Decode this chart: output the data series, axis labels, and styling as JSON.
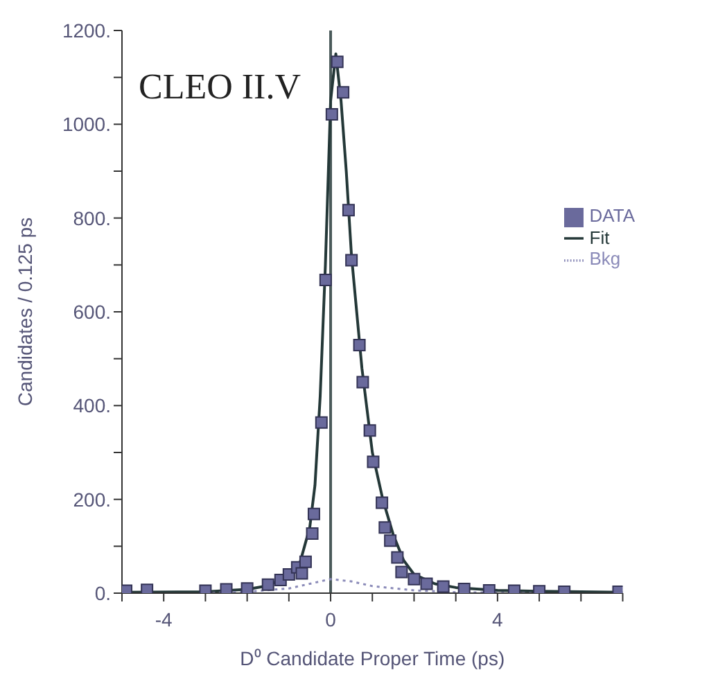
{
  "chart_data": {
    "type": "scatter",
    "xlabel": "D⁰ Candidate Proper Time (ps)",
    "ylabel": "Candidates / 0.125 ps",
    "annotations": [
      "CLEO II.V"
    ],
    "series": [
      {
        "name": "DATA",
        "type": "scatter",
        "marker": "square",
        "color": "#6a6a9c",
        "x": [
          -4.9,
          -4.4,
          -3.0,
          -2.5,
          -2.0,
          -1.5,
          -1.2,
          -1.0,
          -0.8,
          -0.69,
          -0.6,
          -0.44,
          -0.4,
          -0.22,
          -0.12,
          0.03,
          0.16,
          0.3,
          0.43,
          0.5,
          0.69,
          0.77,
          0.94,
          1.02,
          1.23,
          1.3,
          1.43,
          1.6,
          1.7,
          2.0,
          2.3,
          2.7,
          3.2,
          3.8,
          4.4,
          5.0,
          5.6,
          6.9
        ],
        "values": [
          5,
          7,
          5,
          8,
          10,
          18,
          28,
          40,
          55,
          42,
          67,
          127,
          169,
          364,
          668,
          1021,
          1133,
          1068,
          817,
          710,
          529,
          450,
          347,
          280,
          193,
          140,
          112,
          76,
          45,
          30,
          20,
          14,
          9,
          6,
          5,
          4,
          3,
          3
        ]
      },
      {
        "name": "Fit",
        "type": "line",
        "line_style": "solid",
        "color": "#243838",
        "x": [
          -5,
          -3,
          -2,
          -1.5,
          -1,
          -0.75,
          -0.5,
          -0.375,
          -0.25,
          -0.125,
          0,
          0.125,
          0.25,
          0.375,
          0.5,
          0.625,
          0.75,
          0.875,
          1,
          1.25,
          1.5,
          1.75,
          2,
          2.5,
          3,
          4,
          5,
          7
        ],
        "values": [
          2,
          3,
          8,
          16,
          38,
          60,
          140,
          230,
          420,
          700,
          1050,
          1150,
          1050,
          900,
          720,
          600,
          480,
          390,
          300,
          200,
          125,
          70,
          40,
          20,
          12,
          6,
          4,
          2
        ]
      },
      {
        "name": "Bkg",
        "type": "line",
        "line_style": "dotted",
        "color": "#8a8ab8",
        "x": [
          -3,
          -2,
          -1,
          -0.5,
          0,
          0.5,
          1,
          2,
          3,
          5
        ],
        "values": [
          0,
          3,
          10,
          20,
          30,
          25,
          15,
          6,
          2,
          0
        ]
      }
    ],
    "ref_lines": [
      {
        "axis": "x",
        "value": 0,
        "color": "#4a5a5a"
      }
    ],
    "xlim": [
      -5,
      7
    ],
    "xticks": [
      {
        "value": -5,
        "label": null
      },
      -4,
      {
        "value": -3,
        "label": null
      },
      {
        "value": -2,
        "label": null
      },
      {
        "value": -1,
        "label": null
      },
      0,
      {
        "value": 1,
        "label": null
      },
      {
        "value": 2,
        "label": null
      },
      {
        "value": 3,
        "label": null
      },
      4,
      {
        "value": 5,
        "label": null
      },
      {
        "value": 6,
        "label": null
      },
      {
        "value": 7,
        "label": null
      }
    ],
    "ylim": [
      0,
      1200
    ],
    "yticks": [
      {
        "value": 0,
        "label": "0."
      },
      {
        "value": 100,
        "label": null
      },
      {
        "value": 200,
        "label": "200."
      },
      {
        "value": 300,
        "label": null
      },
      {
        "value": 400,
        "label": "400."
      },
      {
        "value": 500,
        "label": null
      },
      {
        "value": 600,
        "label": "600."
      },
      {
        "value": 700,
        "label": null
      },
      {
        "value": 800,
        "label": "800."
      },
      {
        "value": 900,
        "label": null
      },
      {
        "value": 1000,
        "label": "1000."
      },
      {
        "value": 1100,
        "label": null
      },
      {
        "value": 1200,
        "label": "1200."
      }
    ],
    "grid": false,
    "legend": "top right"
  }
}
